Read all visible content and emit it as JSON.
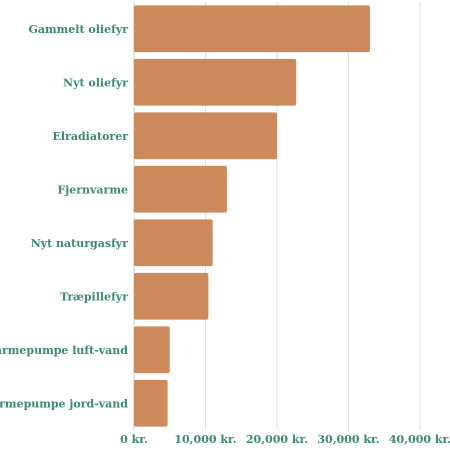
{
  "colors": {
    "bar": "#cc8a5c",
    "label": "#3a8a6e",
    "grid": "#d9e6e2",
    "axis": "#bcd3cc"
  },
  "chart_data": {
    "type": "bar",
    "orientation": "horizontal",
    "categories": [
      "Gammelt oliefyr",
      "Nyt oliefyr",
      "Elradiatorer",
      "Fjernvarme",
      "Nyt naturgasfyr",
      "Træpillefyr",
      "Varmepumpe luft-vand",
      "Varmepumpe jord-vand"
    ],
    "values": [
      33000,
      22700,
      20000,
      13000,
      11000,
      10400,
      5000,
      4700
    ],
    "xlim": [
      0,
      40000
    ],
    "xticks": [
      0,
      10000,
      20000,
      30000,
      40000
    ],
    "xtick_labels": [
      "0 kr.",
      "10,000 kr.",
      "20,000 kr.",
      "30,000 kr.",
      "40,000 kr."
    ],
    "grid": true,
    "title": "",
    "xlabel": "",
    "ylabel": ""
  }
}
